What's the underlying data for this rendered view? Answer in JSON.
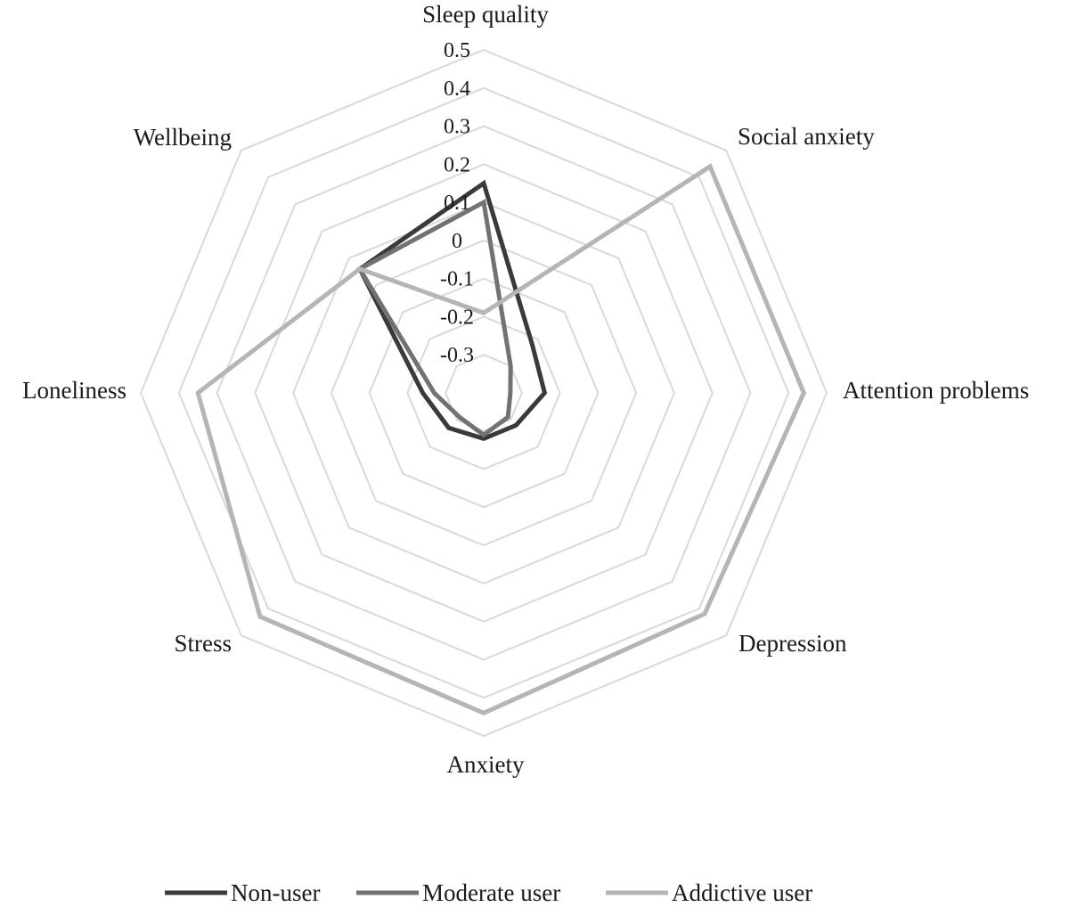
{
  "chart_data": {
    "type": "radar",
    "categories": [
      "Sleep quality",
      "Social anxiety",
      "Attention problems",
      "Depression",
      "Anxiety",
      "Stress",
      "Loneliness",
      "Wellbeing"
    ],
    "ticks": [
      "0.5",
      "0.4",
      "0.3",
      "0.2",
      "0.1",
      "0",
      "-0.1",
      "-0.2",
      "-0.3"
    ],
    "rlim": [
      -0.4,
      0.5
    ],
    "grid": true,
    "legend_position": "bottom",
    "series": [
      {
        "name": "Non-user",
        "color": "#3a3a3a",
        "values": [
          0.15,
          -0.22,
          -0.24,
          -0.28,
          -0.28,
          -0.27,
          -0.24,
          0.06
        ]
      },
      {
        "name": "Moderate user",
        "color": "#727272",
        "values": [
          0.1,
          -0.3,
          -0.33,
          -0.31,
          -0.29,
          -0.31,
          -0.27,
          0.06
        ]
      },
      {
        "name": "Addictive user",
        "color": "#b5b5b5",
        "values": [
          -0.19,
          0.44,
          0.44,
          0.42,
          0.44,
          0.43,
          0.35,
          0.06
        ]
      }
    ]
  }
}
